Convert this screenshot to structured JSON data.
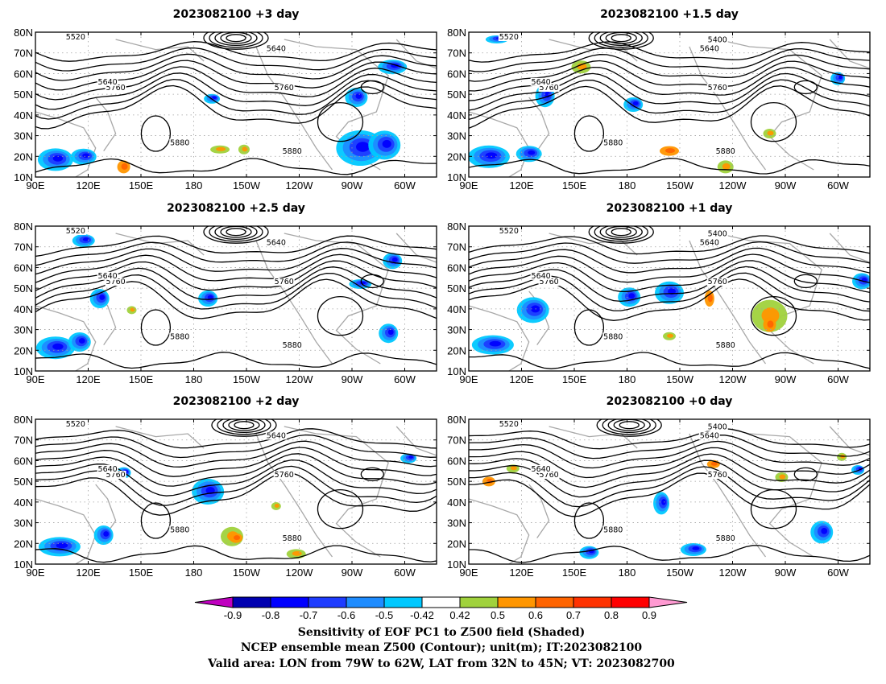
{
  "panels": [
    {
      "title": "2023082100 +3 day"
    },
    {
      "title": "2023082100 +1.5 day"
    },
    {
      "title": "2023082100 +2.5 day"
    },
    {
      "title": "2023082100 +1 day"
    },
    {
      "title": "2023082100 +2 day"
    },
    {
      "title": "2023082100 +0 day"
    }
  ],
  "lat_ticks": [
    "80N",
    "70N",
    "60N",
    "50N",
    "40N",
    "30N",
    "20N",
    "10N"
  ],
  "lon_ticks": [
    "90E",
    "120E",
    "150E",
    "180",
    "150W",
    "120W",
    "90W",
    "60W"
  ],
  "contour_labels": [
    "5520",
    "5640",
    "5760",
    "5880",
    "5400"
  ],
  "colorbar": {
    "labels": [
      "-0.9",
      "-0.8",
      "-0.7",
      "-0.6",
      "-0.5",
      "-0.42",
      "0.42",
      "0.5",
      "0.6",
      "0.7",
      "0.8",
      "0.9"
    ],
    "colors": [
      "#c000c0",
      "#0000b0",
      "#0000ff",
      "#1e3cff",
      "#1e8cff",
      "#00c8ff",
      "#ffffff",
      "#a0d23c",
      "#ff9600",
      "#ff6400",
      "#ff3200",
      "#ff0000",
      "#ff9ad2"
    ]
  },
  "caption": {
    "line1": "Sensitivity of EOF PC1 to Z500 field (Shaded)",
    "line2": "NCEP ensemble mean Z500 (Contour); unit(m); IT:2023082100",
    "line3": "Valid area: LON from 79W to 62W, LAT from 32N to 45N; VT: 2023082700"
  }
}
